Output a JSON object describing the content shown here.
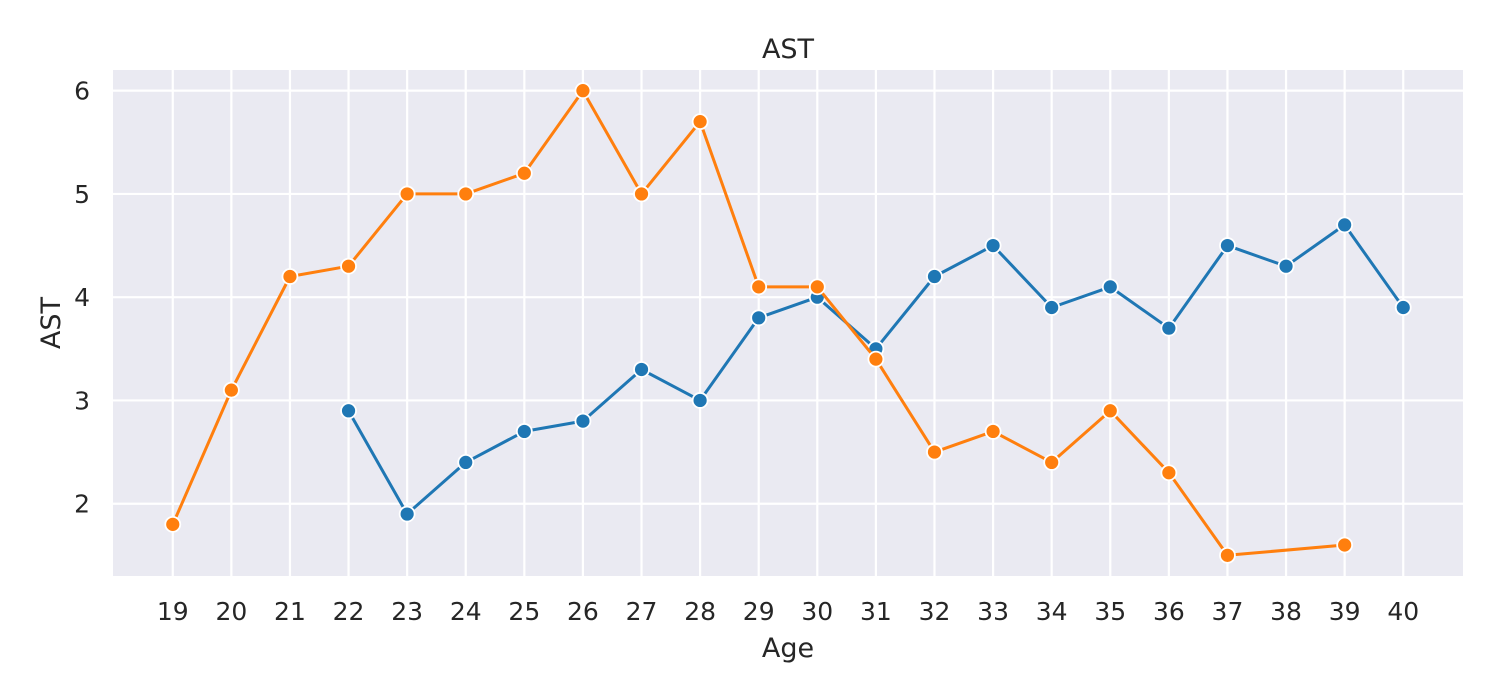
{
  "chart_data": {
    "type": "line",
    "title": "AST",
    "xlabel": "Age",
    "ylabel": "AST",
    "x": [
      19,
      20,
      21,
      22,
      23,
      24,
      25,
      26,
      27,
      28,
      29,
      30,
      31,
      32,
      33,
      34,
      35,
      36,
      37,
      38,
      39,
      40
    ],
    "x_ticks": [
      "19",
      "20",
      "21",
      "22",
      "23",
      "24",
      "25",
      "26",
      "27",
      "28",
      "29",
      "30",
      "31",
      "32",
      "33",
      "34",
      "35",
      "36",
      "37",
      "38",
      "39",
      "40"
    ],
    "y_ticks": [
      "2",
      "3",
      "4",
      "5",
      "6"
    ],
    "ylim": [
      1.3,
      6.2
    ],
    "grid": true,
    "legend": "none",
    "background_color": "#eaeaf2",
    "series": [
      {
        "color": "#1f77b4",
        "points": [
          {
            "x": 22,
            "y": 2.9
          },
          {
            "x": 23,
            "y": 1.9
          },
          {
            "x": 24,
            "y": 2.4
          },
          {
            "x": 25,
            "y": 2.7
          },
          {
            "x": 26,
            "y": 2.8
          },
          {
            "x": 27,
            "y": 3.3
          },
          {
            "x": 28,
            "y": 3.0
          },
          {
            "x": 29,
            "y": 3.8
          },
          {
            "x": 30,
            "y": 4.0
          },
          {
            "x": 31,
            "y": 3.5
          },
          {
            "x": 32,
            "y": 4.2
          },
          {
            "x": 33,
            "y": 4.5
          },
          {
            "x": 34,
            "y": 3.9
          },
          {
            "x": 35,
            "y": 4.1
          },
          {
            "x": 36,
            "y": 3.7
          },
          {
            "x": 37,
            "y": 4.5
          },
          {
            "x": 38,
            "y": 4.3
          },
          {
            "x": 39,
            "y": 4.7
          },
          {
            "x": 40,
            "y": 3.9
          }
        ]
      },
      {
        "color": "#ff7f0e",
        "points": [
          {
            "x": 19,
            "y": 1.8
          },
          {
            "x": 20,
            "y": 3.1
          },
          {
            "x": 21,
            "y": 4.2
          },
          {
            "x": 22,
            "y": 4.3
          },
          {
            "x": 23,
            "y": 5.0
          },
          {
            "x": 24,
            "y": 5.0
          },
          {
            "x": 25,
            "y": 5.2
          },
          {
            "x": 26,
            "y": 6.0
          },
          {
            "x": 27,
            "y": 5.0
          },
          {
            "x": 28,
            "y": 5.7
          },
          {
            "x": 29,
            "y": 4.1
          },
          {
            "x": 30,
            "y": 4.1
          },
          {
            "x": 31,
            "y": 3.4
          },
          {
            "x": 32,
            "y": 2.5
          },
          {
            "x": 33,
            "y": 2.7
          },
          {
            "x": 34,
            "y": 2.4
          },
          {
            "x": 35,
            "y": 2.9
          },
          {
            "x": 36,
            "y": 2.3
          },
          {
            "x": 37,
            "y": 1.5
          },
          {
            "x": 39,
            "y": 1.6
          }
        ]
      }
    ]
  }
}
